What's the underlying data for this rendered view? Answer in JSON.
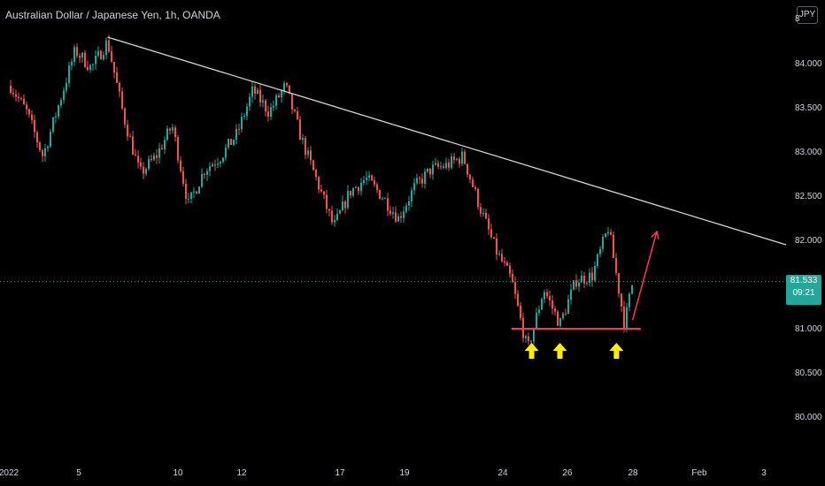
{
  "header": {
    "title": "Australian Dollar / Japanese Yen, 1h, OANDA",
    "currency_button": "JPY",
    "top_right_partial_tick": "8"
  },
  "price_tag": {
    "price": "81.533",
    "countdown": "09:21"
  },
  "chart_data": {
    "type": "candlestick",
    "title": "Australian Dollar / Japanese Yen, 1h, OANDA",
    "xlabel": "",
    "ylabel": "",
    "x_tick_labels": [
      "2022",
      "5",
      "10",
      "12",
      "17",
      "19",
      "24",
      "26",
      "28",
      "Feb",
      "3"
    ],
    "y_tick_labels": [
      "84.000",
      "83.500",
      "83.000",
      "82.500",
      "82.000",
      "81.500",
      "81.000",
      "80.500",
      "80.000"
    ],
    "ylim": [
      79.8,
      84.5
    ],
    "current_price": 81.533,
    "grid": false,
    "price_path": [
      [
        "2022-01-03 00:00",
        83.75
      ],
      [
        "2022-01-03 12:00",
        83.45
      ],
      [
        "2022-01-04 00:00",
        82.95
      ],
      [
        "2022-01-04 12:00",
        83.55
      ],
      [
        "2022-01-05 00:00",
        84.15
      ],
      [
        "2022-01-05 12:00",
        83.95
      ],
      [
        "2022-01-06 00:00",
        84.25
      ],
      [
        "2022-01-06 12:00",
        83.4
      ],
      [
        "2022-01-07 00:00",
        82.75
      ],
      [
        "2022-01-07 12:00",
        82.95
      ],
      [
        "2022-01-10 00:00",
        83.3
      ],
      [
        "2022-01-10 12:00",
        82.4
      ],
      [
        "2022-01-11 00:00",
        82.8
      ],
      [
        "2022-01-11 12:00",
        82.95
      ],
      [
        "2022-01-12 00:00",
        83.2
      ],
      [
        "2022-01-12 12:00",
        83.7
      ],
      [
        "2022-01-13 00:00",
        83.45
      ],
      [
        "2022-01-13 12:00",
        83.75
      ],
      [
        "2022-01-14 00:00",
        83.15
      ],
      [
        "2022-01-14 12:00",
        82.65
      ],
      [
        "2022-01-17 00:00",
        82.15
      ],
      [
        "2022-01-17 12:00",
        82.55
      ],
      [
        "2022-01-18 00:00",
        82.7
      ],
      [
        "2022-01-18 12:00",
        82.5
      ],
      [
        "2022-01-19 00:00",
        82.25
      ],
      [
        "2022-01-19 12:00",
        82.6
      ],
      [
        "2022-01-20 00:00",
        82.8
      ],
      [
        "2022-01-20 12:00",
        82.85
      ],
      [
        "2022-01-21 00:00",
        82.95
      ],
      [
        "2022-01-21 12:00",
        82.4
      ],
      [
        "2022-01-24 00:00",
        81.9
      ],
      [
        "2022-01-24 12:00",
        81.55
      ],
      [
        "2022-01-25 00:00",
        80.75
      ],
      [
        "2022-01-25 12:00",
        81.45
      ],
      [
        "2022-01-26 00:00",
        81.05
      ],
      [
        "2022-01-26 12:00",
        81.55
      ],
      [
        "2022-01-27 00:00",
        81.6
      ],
      [
        "2022-01-27 12:00",
        82.15
      ],
      [
        "2022-01-28 00:00",
        81.05
      ],
      [
        "2022-01-28 06:00",
        81.533
      ]
    ],
    "annotations": {
      "trendline": {
        "from": [
          "2022-01-06 00:00",
          84.3
        ],
        "to": [
          "2022-02-04 00:00",
          81.95
        ],
        "color": "#d6d6d6"
      },
      "support_line": {
        "price": 81.0,
        "from": "2022-01-24 12:00",
        "to": "2022-01-28 12:00",
        "color": "#f23b5a"
      },
      "projection_arrow": {
        "from": [
          "2022-01-28 06:00",
          81.1
        ],
        "to": [
          "2022-01-29 00:00",
          82.1
        ],
        "color": "#f23b5a"
      },
      "up_arrows": {
        "dates": [
          "2022-01-25 03:00",
          "2022-01-26 00:00",
          "2022-01-27 18:00"
        ],
        "color": "#ffee00"
      }
    },
    "colors": {
      "up": "#26a69a",
      "down": "#ef5350",
      "background": "#000000"
    }
  }
}
